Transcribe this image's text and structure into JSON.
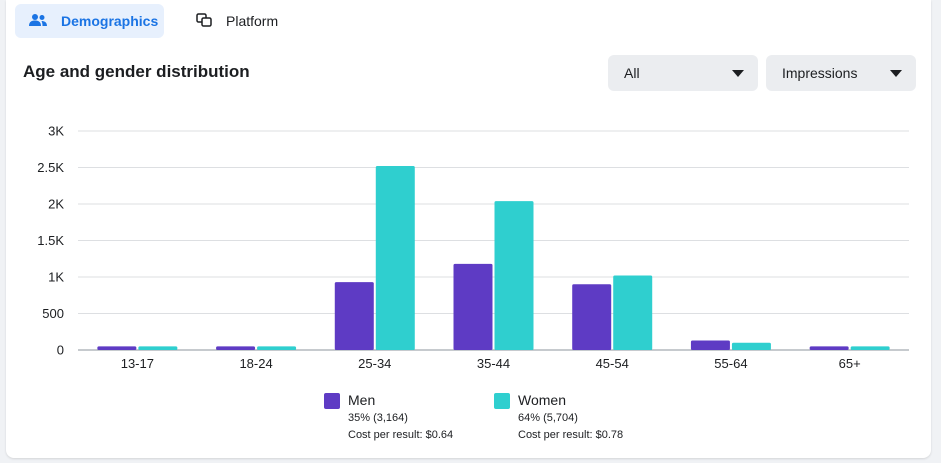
{
  "tabs": [
    {
      "label": "Demographics",
      "icon": "people-icon",
      "active": true
    },
    {
      "label": "Platform",
      "icon": "platform-icon",
      "active": false
    }
  ],
  "header": {
    "title": "Age and gender distribution"
  },
  "filters": {
    "audience": "All",
    "metric": "Impressions"
  },
  "colors": {
    "men": "#5e3bc4",
    "women": "#2fcfcf",
    "accent": "#1b74e4",
    "grid": "#dddfe2"
  },
  "legend": [
    {
      "name": "Men",
      "stat": "35% (3,164)",
      "cost": "Cost per result: $0.64"
    },
    {
      "name": "Women",
      "stat": "64% (5,704)",
      "cost": "Cost per result: $0.78"
    }
  ],
  "chart_data": {
    "type": "bar",
    "categories": [
      "13-17",
      "18-24",
      "25-34",
      "35-44",
      "45-54",
      "55-64",
      "65+"
    ],
    "series": [
      {
        "name": "Men",
        "values": [
          50,
          50,
          930,
          1180,
          900,
          130,
          50
        ]
      },
      {
        "name": "Women",
        "values": [
          50,
          50,
          2520,
          2040,
          1020,
          100,
          50
        ]
      }
    ],
    "y_ticks": [
      "0",
      "500",
      "1K",
      "1.5K",
      "2K",
      "2.5K",
      "3K"
    ],
    "ylim": [
      0,
      3000
    ],
    "grid": true,
    "legend_position": "bottom"
  }
}
